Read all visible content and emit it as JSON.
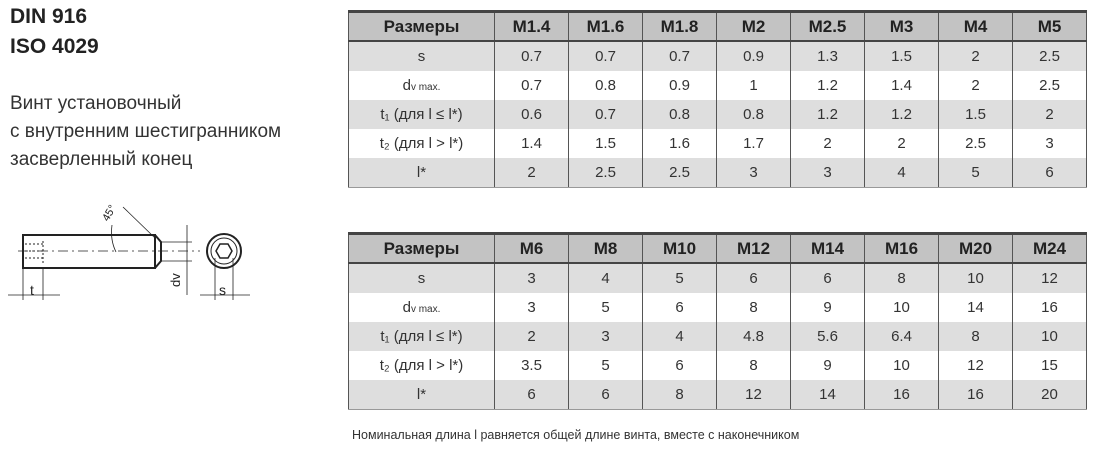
{
  "title": {
    "line1": "DIN 916",
    "line2": "ISO 4029"
  },
  "description": [
    "Винт установочный",
    "с внутренним шестигранником",
    "засверленный конец"
  ],
  "drawing": {
    "angle_label": "45°",
    "t_label": "t",
    "dv_label": "dv",
    "s_label": "s"
  },
  "table1": {
    "headers": [
      "Размеры",
      "M1.4",
      "M1.6",
      "M1.8",
      "M2",
      "M2.5",
      "M3",
      "M4",
      "M5"
    ],
    "rows": [
      {
        "label": "s",
        "values": [
          "0.7",
          "0.7",
          "0.7",
          "0.9",
          "1.3",
          "1.5",
          "2",
          "2.5"
        ]
      },
      {
        "label": "d",
        "sub": "v max.",
        "values": [
          "0.7",
          "0.8",
          "0.9",
          "1",
          "1.2",
          "1.4",
          "2",
          "2.5"
        ]
      },
      {
        "label": "t₁ (для l ≤ l*)",
        "values": [
          "0.6",
          "0.7",
          "0.8",
          "0.8",
          "1.2",
          "1.2",
          "1.5",
          "2"
        ]
      },
      {
        "label": "t₂ (для l > l*)",
        "values": [
          "1.4",
          "1.5",
          "1.6",
          "1.7",
          "2",
          "2",
          "2.5",
          "3"
        ]
      },
      {
        "label": "l*",
        "values": [
          "2",
          "2.5",
          "2.5",
          "3",
          "3",
          "4",
          "5",
          "6"
        ]
      }
    ]
  },
  "table2": {
    "headers": [
      "Размеры",
      "M6",
      "M8",
      "M10",
      "M12",
      "M14",
      "M16",
      "M20",
      "M24"
    ],
    "rows": [
      {
        "label": "s",
        "values": [
          "3",
          "4",
          "5",
          "6",
          "6",
          "8",
          "10",
          "12"
        ]
      },
      {
        "label": "d",
        "sub": "v max.",
        "values": [
          "3",
          "5",
          "6",
          "8",
          "9",
          "10",
          "14",
          "16"
        ]
      },
      {
        "label": "t₁ (для l ≤ l*)",
        "values": [
          "2",
          "3",
          "4",
          "4.8",
          "5.6",
          "6.4",
          "8",
          "10"
        ]
      },
      {
        "label": "t₂ (для l > l*)",
        "values": [
          "3.5",
          "5",
          "6",
          "8",
          "9",
          "10",
          "12",
          "15"
        ]
      },
      {
        "label": "l*",
        "values": [
          "6",
          "6",
          "8",
          "12",
          "14",
          "16",
          "16",
          "20"
        ]
      }
    ]
  },
  "note": "Номинальная длина l равняется общей длине винта, вместе с наконечником"
}
